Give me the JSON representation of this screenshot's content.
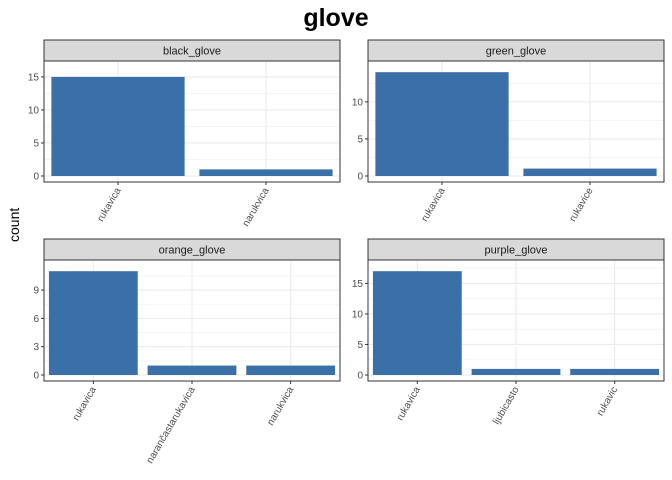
{
  "chart_data": {
    "type": "bar",
    "title": "glove",
    "ylabel": "count",
    "xlabel": "",
    "facets": [
      {
        "name": "black_glove",
        "categories": [
          "rukavica",
          "narukvica"
        ],
        "values": [
          15,
          1
        ],
        "ylim": [
          0,
          16.5
        ],
        "yticks": [
          0,
          5,
          10,
          15
        ]
      },
      {
        "name": "green_glove",
        "categories": [
          "rukavica",
          "rukavice"
        ],
        "values": [
          14,
          1
        ],
        "ylim": [
          0,
          14.7
        ],
        "yticks": [
          0,
          5,
          10
        ]
      },
      {
        "name": "orange_glove",
        "categories": [
          "rukavica",
          "narančastarukavica",
          "narukvica"
        ],
        "values": [
          11,
          1,
          1
        ],
        "ylim": [
          0,
          11.55
        ],
        "yticks": [
          0,
          3,
          6,
          9
        ]
      },
      {
        "name": "purple_glove",
        "categories": [
          "rukavica",
          "ljubicasto",
          "rukavic"
        ],
        "values": [
          17,
          1,
          1
        ],
        "ylim": [
          0,
          17.85
        ],
        "yticks": [
          0,
          5,
          10,
          15
        ]
      }
    ],
    "bar_color": "#3a6fa8",
    "strip_color": "#d9d9d9",
    "grid": true,
    "legend": "none"
  }
}
